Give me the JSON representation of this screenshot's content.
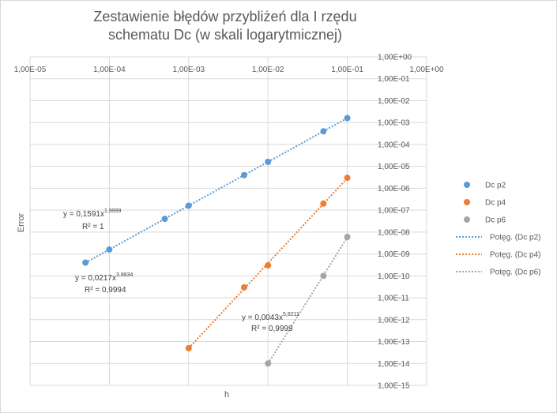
{
  "chart_data": {
    "type": "scatter",
    "title": "Zestawienie błędów przybliżeń dla I rzędu schematu Dc (w skali logarytmicznej)",
    "xlabel": "h",
    "ylabel": "Error",
    "x_scale": "log",
    "y_scale": "log",
    "xlim": [
      1e-05,
      1
    ],
    "ylim": [
      1e-15,
      1
    ],
    "grid": true,
    "legend_position": "right",
    "x_tick_labels": [
      "1,00E-05",
      "1,00E-04",
      "1,00E-03",
      "1,00E-02",
      "1,00E-01",
      "1,00E+00"
    ],
    "y_tick_labels": [
      "1,00E+00",
      "1,00E-01",
      "1,00E-02",
      "1,00E-03",
      "1,00E-04",
      "1,00E-05",
      "1,00E-06",
      "1,00E-07",
      "1,00E-08",
      "1,00E-09",
      "1,00E-10",
      "1,00E-11",
      "1,00E-12",
      "1,00E-13",
      "1,00E-14",
      "1,00E-15"
    ],
    "series": [
      {
        "name": "Dc p2",
        "color": "#5B9BD5",
        "x": [
          5e-05,
          0.0001,
          0.0005,
          0.001,
          0.005,
          0.01,
          0.05,
          0.1
        ],
        "y": [
          4e-10,
          1.6e-09,
          4e-08,
          1.6e-07,
          4e-06,
          1.6e-05,
          0.0004,
          0.0016
        ]
      },
      {
        "name": "Dc p4",
        "color": "#ED7D31",
        "x": [
          0.001,
          0.005,
          0.01,
          0.05,
          0.1
        ],
        "y": [
          5e-14,
          3e-11,
          3e-10,
          2e-07,
          3e-06
        ]
      },
      {
        "name": "Dc p6",
        "color": "#A5A5A5",
        "x": [
          0.01,
          0.05,
          0.1
        ],
        "y": [
          1e-14,
          1e-10,
          6e-09
        ]
      }
    ],
    "trendlines": [
      {
        "name": "Potęg. (Dc p2)",
        "color": "#5B9BD5",
        "type": "power",
        "coef": "0,1591",
        "exponent": "1,9999",
        "r2": "1",
        "x_range": [
          5e-05,
          0.1
        ]
      },
      {
        "name": "Potęg. (Dc p4)",
        "color": "#ED7D31",
        "type": "power",
        "coef": "0,0217",
        "exponent": "3,8834",
        "r2": "0,9994",
        "x_range": [
          0.001,
          0.1
        ]
      },
      {
        "name": "Potęg. (Dc p6)",
        "color": "#A5A5A5",
        "type": "power",
        "coef": "0,0043",
        "exponent": "5,8211",
        "r2": "0,9999",
        "x_range": [
          0.01,
          0.1
        ]
      }
    ],
    "trendline_labels": [
      {
        "equation": "y = 0,1591x",
        "exponent": "1,9999",
        "r2": "R² = 1"
      },
      {
        "equation": "y = 0,0217x",
        "exponent": "3,8834",
        "r2": "R² = 0,9994"
      },
      {
        "equation": "y = 0,0043x",
        "exponent": "5,8211",
        "r2": "R² = 0,9999"
      }
    ]
  }
}
